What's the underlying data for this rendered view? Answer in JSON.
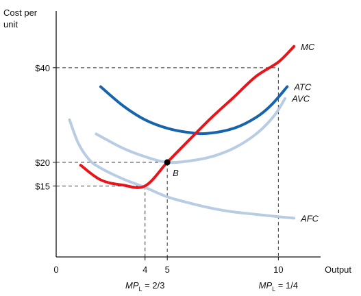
{
  "chart_data": {
    "type": "line",
    "ylabel": [
      "Cost per",
      "unit"
    ],
    "xlabel": "Output",
    "x_ticks": [
      {
        "value": 0,
        "label": "0"
      },
      {
        "value": 4,
        "label": "4"
      },
      {
        "value": 5,
        "label": "5"
      },
      {
        "value": 10,
        "label": "10"
      }
    ],
    "y_ticks": [
      {
        "value": 15,
        "label": "$15"
      },
      {
        "value": 20,
        "label": "$20"
      },
      {
        "value": 40,
        "label": "$40"
      }
    ],
    "xlim": [
      0,
      11.9
    ],
    "ylim": [
      0,
      52
    ],
    "series": [
      {
        "name": "MC",
        "color": "#e8141a",
        "points": [
          [
            1.1,
            19.4
          ],
          [
            2.0,
            16.3
          ],
          [
            3.0,
            15.2
          ],
          [
            4.0,
            15.0
          ],
          [
            5.0,
            20.0
          ],
          [
            6.0,
            24.8
          ],
          [
            7.0,
            29.5
          ],
          [
            8.0,
            33.8
          ],
          [
            9.0,
            38.2
          ],
          [
            10.0,
            41.2
          ],
          [
            10.7,
            44.5
          ]
        ]
      },
      {
        "name": "ATC",
        "color": "#1764ad",
        "points": [
          [
            2.0,
            36.0
          ],
          [
            3.0,
            32.0
          ],
          [
            4.0,
            29.0
          ],
          [
            5.0,
            27.2
          ],
          [
            6.0,
            26.3
          ],
          [
            6.8,
            26.1
          ],
          [
            8.0,
            27.2
          ],
          [
            9.0,
            29.5
          ],
          [
            9.7,
            32.2
          ],
          [
            10.4,
            36.0
          ]
        ]
      },
      {
        "name": "AVC",
        "color": "#b8cce4",
        "points": [
          [
            1.8,
            26.0
          ],
          [
            3.0,
            23.0
          ],
          [
            4.0,
            21.2
          ],
          [
            5.0,
            20.0
          ],
          [
            6.0,
            20.3
          ],
          [
            7.0,
            21.2
          ],
          [
            8.0,
            23.0
          ],
          [
            9.0,
            26.0
          ],
          [
            9.8,
            29.8
          ],
          [
            10.3,
            33.5
          ]
        ]
      },
      {
        "name": "AFC",
        "color": "#b8cce4",
        "points": [
          [
            0.6,
            29.0
          ],
          [
            1.0,
            24.0
          ],
          [
            1.5,
            20.5
          ],
          [
            2.0,
            18.8
          ],
          [
            3.0,
            16.5
          ],
          [
            4.0,
            14.7
          ],
          [
            5.0,
            12.7
          ],
          [
            6.0,
            11.4
          ],
          [
            7.0,
            10.3
          ],
          [
            8.0,
            9.5
          ],
          [
            9.0,
            9.0
          ],
          [
            10.0,
            8.5
          ],
          [
            10.7,
            8.2
          ]
        ]
      }
    ],
    "point": {
      "label": "B",
      "x": 5,
      "y": 20
    },
    "reference_lines": [
      {
        "x": 4,
        "y": 15
      },
      {
        "x": 5,
        "y": 20
      },
      {
        "x": 10,
        "y": 40
      }
    ],
    "annotations": {
      "mp_left": {
        "x": 4,
        "main": "MP",
        "sub": "L",
        "rest": " = 2/3"
      },
      "mp_right": {
        "x": 10,
        "main": "MP",
        "sub": "L",
        "rest": " = 1/4"
      }
    }
  }
}
